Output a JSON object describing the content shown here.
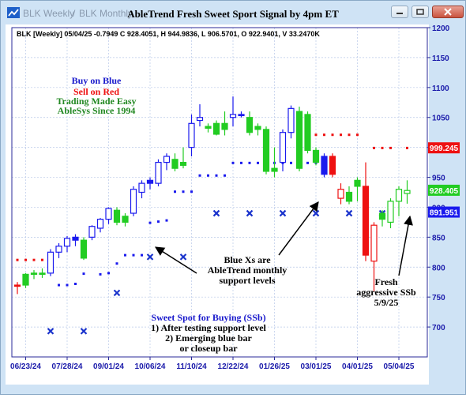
{
  "window": {
    "tabs": [
      "BLK Weekly",
      "BLK Monthly"
    ],
    "tab_separator": "/",
    "title": "AbleTrend Fresh Sweet Sport Signal by 4pm ET",
    "buttons": [
      "minimize",
      "restore",
      "close"
    ]
  },
  "info_line": "BLK [Weekly] 05/04/25  -0.7949 C 928.4051, H 944.9836, L 906.5701, O 922.9401, V 33.2470K",
  "legend": {
    "buy": "Buy on Blue",
    "sell": "Sell on Red",
    "easy": "Trading Made Easy",
    "since": "AbleSys Since 1994"
  },
  "annotations": {
    "support": [
      "Blue Xs are",
      "AbleTrend monthly",
      "support levels"
    ],
    "fresh": [
      "Fresh",
      "aggressive SSb",
      "5/9/25"
    ],
    "sweet_spot": [
      "Sweet Spot for Buying (SSb)",
      "1) After testing support level",
      "2) Emerging blue bar",
      "or closeup bar"
    ]
  },
  "colors": {
    "blue": "#1a1aee",
    "red": "#ee1111",
    "green": "#22cc22",
    "xmark": "#1a33cc",
    "legend_blue": "#1a1acc",
    "legend_red": "#ee1111",
    "legend_green": "#228822"
  },
  "chart_data": {
    "type": "candlestick",
    "ylim": [
      650,
      1200
    ],
    "y_ticks": [
      700,
      750,
      800,
      850,
      900,
      950,
      1000,
      1050,
      1100,
      1150,
      1200
    ],
    "x_labels": [
      "06/23/24",
      "07/28/24",
      "09/01/24",
      "10/06/24",
      "11/10/24",
      "12/22/24",
      "01/26/25",
      "03/01/25",
      "04/01/25",
      "05/04/25"
    ],
    "x_label_index": [
      1,
      6,
      11,
      16,
      21,
      26,
      31,
      36,
      41,
      46
    ],
    "price_tags": [
      {
        "label": "999.245",
        "value": 999.245,
        "color": "#ee1111"
      },
      {
        "label": "928.405",
        "value": 928.405,
        "color": "#22cc22"
      },
      {
        "label": "891.951",
        "value": 891.951,
        "color": "#1a1aee"
      }
    ],
    "candles": [
      {
        "o": 768,
        "h": 775,
        "l": 755,
        "c": 770,
        "col": "red"
      },
      {
        "o": 770,
        "h": 790,
        "l": 765,
        "c": 788,
        "col": "green"
      },
      {
        "o": 788,
        "h": 795,
        "l": 780,
        "c": 790,
        "col": "green"
      },
      {
        "o": 788,
        "h": 798,
        "l": 782,
        "c": 790,
        "col": "green"
      },
      {
        "o": 790,
        "h": 830,
        "l": 785,
        "c": 825,
        "col": "blue"
      },
      {
        "o": 825,
        "h": 840,
        "l": 815,
        "c": 835,
        "col": "blue"
      },
      {
        "o": 835,
        "h": 852,
        "l": 825,
        "c": 848,
        "col": "blue"
      },
      {
        "o": 850,
        "h": 855,
        "l": 835,
        "c": 845,
        "col": "blue"
      },
      {
        "o": 845,
        "h": 850,
        "l": 812,
        "c": 815,
        "col": "green"
      },
      {
        "o": 850,
        "h": 870,
        "l": 845,
        "c": 868,
        "col": "blue"
      },
      {
        "o": 865,
        "h": 882,
        "l": 858,
        "c": 880,
        "col": "blue"
      },
      {
        "o": 880,
        "h": 900,
        "l": 872,
        "c": 898,
        "col": "blue"
      },
      {
        "o": 895,
        "h": 900,
        "l": 870,
        "c": 875,
        "col": "green"
      },
      {
        "o": 875,
        "h": 890,
        "l": 868,
        "c": 885,
        "col": "green"
      },
      {
        "o": 890,
        "h": 935,
        "l": 885,
        "c": 930,
        "col": "blue"
      },
      {
        "o": 925,
        "h": 945,
        "l": 915,
        "c": 940,
        "col": "blue"
      },
      {
        "o": 945,
        "h": 950,
        "l": 930,
        "c": 940,
        "col": "blue"
      },
      {
        "o": 940,
        "h": 980,
        "l": 935,
        "c": 975,
        "col": "blue"
      },
      {
        "o": 975,
        "h": 990,
        "l": 962,
        "c": 985,
        "col": "blue"
      },
      {
        "o": 980,
        "h": 990,
        "l": 960,
        "c": 965,
        "col": "green"
      },
      {
        "o": 970,
        "h": 1000,
        "l": 965,
        "c": 975,
        "col": "green"
      },
      {
        "o": 1000,
        "h": 1055,
        "l": 985,
        "c": 1040,
        "col": "blue"
      },
      {
        "o": 1045,
        "h": 1072,
        "l": 1035,
        "c": 1050,
        "col": "blue"
      },
      {
        "o": 1035,
        "h": 1040,
        "l": 1025,
        "c": 1032,
        "col": "green"
      },
      {
        "o": 1040,
        "h": 1045,
        "l": 1020,
        "c": 1022,
        "col": "green"
      },
      {
        "o": 1030,
        "h": 1060,
        "l": 1020,
        "c": 1040,
        "col": "green"
      },
      {
        "o": 1050,
        "h": 1085,
        "l": 1035,
        "c": 1055,
        "col": "blue"
      },
      {
        "o": 1055,
        "h": 1060,
        "l": 1050,
        "c": 1053,
        "col": "blue"
      },
      {
        "o": 1050,
        "h": 1060,
        "l": 1020,
        "c": 1025,
        "col": "green"
      },
      {
        "o": 1030,
        "h": 1040,
        "l": 1020,
        "c": 1035,
        "col": "green"
      },
      {
        "o": 1030,
        "h": 1035,
        "l": 955,
        "c": 960,
        "col": "green"
      },
      {
        "o": 960,
        "h": 1000,
        "l": 950,
        "c": 965,
        "col": "green"
      },
      {
        "o": 975,
        "h": 1030,
        "l": 960,
        "c": 1025,
        "col": "blue"
      },
      {
        "o": 1025,
        "h": 1070,
        "l": 1015,
        "c": 1065,
        "col": "blue"
      },
      {
        "o": 1060,
        "h": 1068,
        "l": 960,
        "c": 965,
        "col": "green"
      },
      {
        "o": 1055,
        "h": 1060,
        "l": 990,
        "c": 995,
        "col": "green"
      },
      {
        "o": 995,
        "h": 1000,
        "l": 970,
        "c": 975,
        "col": "green"
      },
      {
        "o": 985,
        "h": 990,
        "l": 950,
        "c": 955,
        "col": "blue"
      },
      {
        "o": 985,
        "h": 990,
        "l": 950,
        "c": 955,
        "col": "red"
      },
      {
        "o": 930,
        "h": 940,
        "l": 905,
        "c": 915,
        "col": "redopen"
      },
      {
        "o": 925,
        "h": 935,
        "l": 905,
        "c": 910,
        "col": "green"
      },
      {
        "o": 935,
        "h": 950,
        "l": 910,
        "c": 945,
        "col": "green"
      },
      {
        "o": 935,
        "h": 975,
        "l": 810,
        "c": 820,
        "col": "red"
      },
      {
        "o": 810,
        "h": 875,
        "l": 760,
        "c": 870,
        "col": "redopen"
      },
      {
        "o": 880,
        "h": 895,
        "l": 868,
        "c": 890,
        "col": "green"
      },
      {
        "o": 875,
        "h": 915,
        "l": 865,
        "c": 910,
        "col": "greenopen"
      },
      {
        "o": 910,
        "h": 935,
        "l": 885,
        "c": 930,
        "col": "greenopen"
      },
      {
        "o": 923,
        "h": 945,
        "l": 906,
        "c": 928,
        "col": "greenopen"
      }
    ],
    "red_dots": [
      {
        "i": 0,
        "v": 812
      },
      {
        "i": 1,
        "v": 812
      },
      {
        "i": 2,
        "v": 812
      },
      {
        "i": 3,
        "v": 812
      },
      {
        "i": 35,
        "v": 1021
      },
      {
        "i": 36,
        "v": 1021
      },
      {
        "i": 37,
        "v": 1021
      },
      {
        "i": 38,
        "v": 1021
      },
      {
        "i": 39,
        "v": 1021
      },
      {
        "i": 40,
        "v": 1021
      },
      {
        "i": 41,
        "v": 1021
      },
      {
        "i": 43,
        "v": 999
      },
      {
        "i": 44,
        "v": 999
      },
      {
        "i": 45,
        "v": 999
      },
      {
        "i": 47,
        "v": 999
      }
    ],
    "blue_dots": [
      {
        "i": 5,
        "v": 770
      },
      {
        "i": 6,
        "v": 770
      },
      {
        "i": 7,
        "v": 772
      },
      {
        "i": 8,
        "v": 789
      },
      {
        "i": 10,
        "v": 788
      },
      {
        "i": 11,
        "v": 790
      },
      {
        "i": 12,
        "v": 806
      },
      {
        "i": 13,
        "v": 820
      },
      {
        "i": 14,
        "v": 820
      },
      {
        "i": 15,
        "v": 820
      },
      {
        "i": 16,
        "v": 874
      },
      {
        "i": 17,
        "v": 876
      },
      {
        "i": 18,
        "v": 878
      },
      {
        "i": 19,
        "v": 926
      },
      {
        "i": 20,
        "v": 926
      },
      {
        "i": 21,
        "v": 926
      },
      {
        "i": 22,
        "v": 953
      },
      {
        "i": 23,
        "v": 953
      },
      {
        "i": 24,
        "v": 953
      },
      {
        "i": 25,
        "v": 953
      },
      {
        "i": 26,
        "v": 974
      },
      {
        "i": 27,
        "v": 974
      },
      {
        "i": 28,
        "v": 974
      },
      {
        "i": 29,
        "v": 974
      },
      {
        "i": 30,
        "v": 974
      },
      {
        "i": 31,
        "v": 974
      },
      {
        "i": 32,
        "v": 974
      },
      {
        "i": 33,
        "v": 974
      },
      {
        "i": 34,
        "v": 974
      },
      {
        "i": 35,
        "v": 974
      },
      {
        "i": 36,
        "v": 974
      },
      {
        "i": 37,
        "v": 974
      }
    ],
    "x_marks": [
      {
        "i": 4,
        "v": 693
      },
      {
        "i": 8,
        "v": 693
      },
      {
        "i": 12,
        "v": 757
      },
      {
        "i": 16,
        "v": 817
      },
      {
        "i": 20,
        "v": 817
      },
      {
        "i": 24,
        "v": 890
      },
      {
        "i": 28,
        "v": 890
      },
      {
        "i": 32,
        "v": 890
      },
      {
        "i": 36,
        "v": 890
      },
      {
        "i": 40,
        "v": 890
      },
      {
        "i": 44,
        "v": 890
      }
    ]
  }
}
